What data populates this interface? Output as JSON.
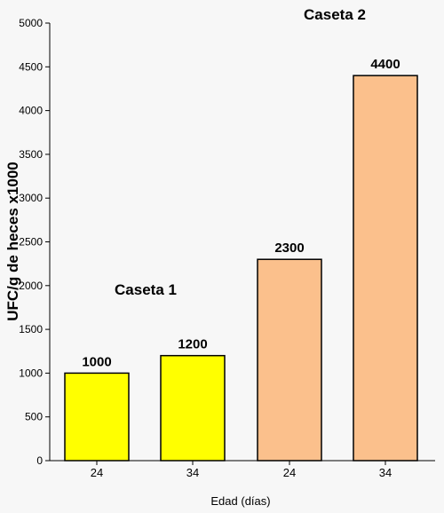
{
  "chart_data": {
    "type": "bar",
    "categories": [
      "24",
      "34",
      "24",
      "34"
    ],
    "values": [
      1000,
      1200,
      2300,
      4400
    ],
    "data_labels": [
      "1000",
      "1200",
      "2300",
      "4400"
    ],
    "bar_colors": [
      "#ffff00",
      "#ffff00",
      "#fbc08c",
      "#fbc08c"
    ],
    "groups": [
      {
        "label": "Caseta 1",
        "category_indices": [
          0,
          1
        ]
      },
      {
        "label": "Caseta 2",
        "category_indices": [
          2,
          3
        ]
      }
    ],
    "ylim": [
      0,
      5000
    ],
    "y_ticks": [
      "0",
      "500",
      "1000",
      "1500",
      "2000",
      "2500",
      "3000",
      "3500",
      "4000",
      "4500",
      "5000"
    ],
    "ylabel": "UFC/g de heces x1000",
    "xlabel": "Edad (días)",
    "grid": false,
    "legend": "none",
    "title": ""
  }
}
